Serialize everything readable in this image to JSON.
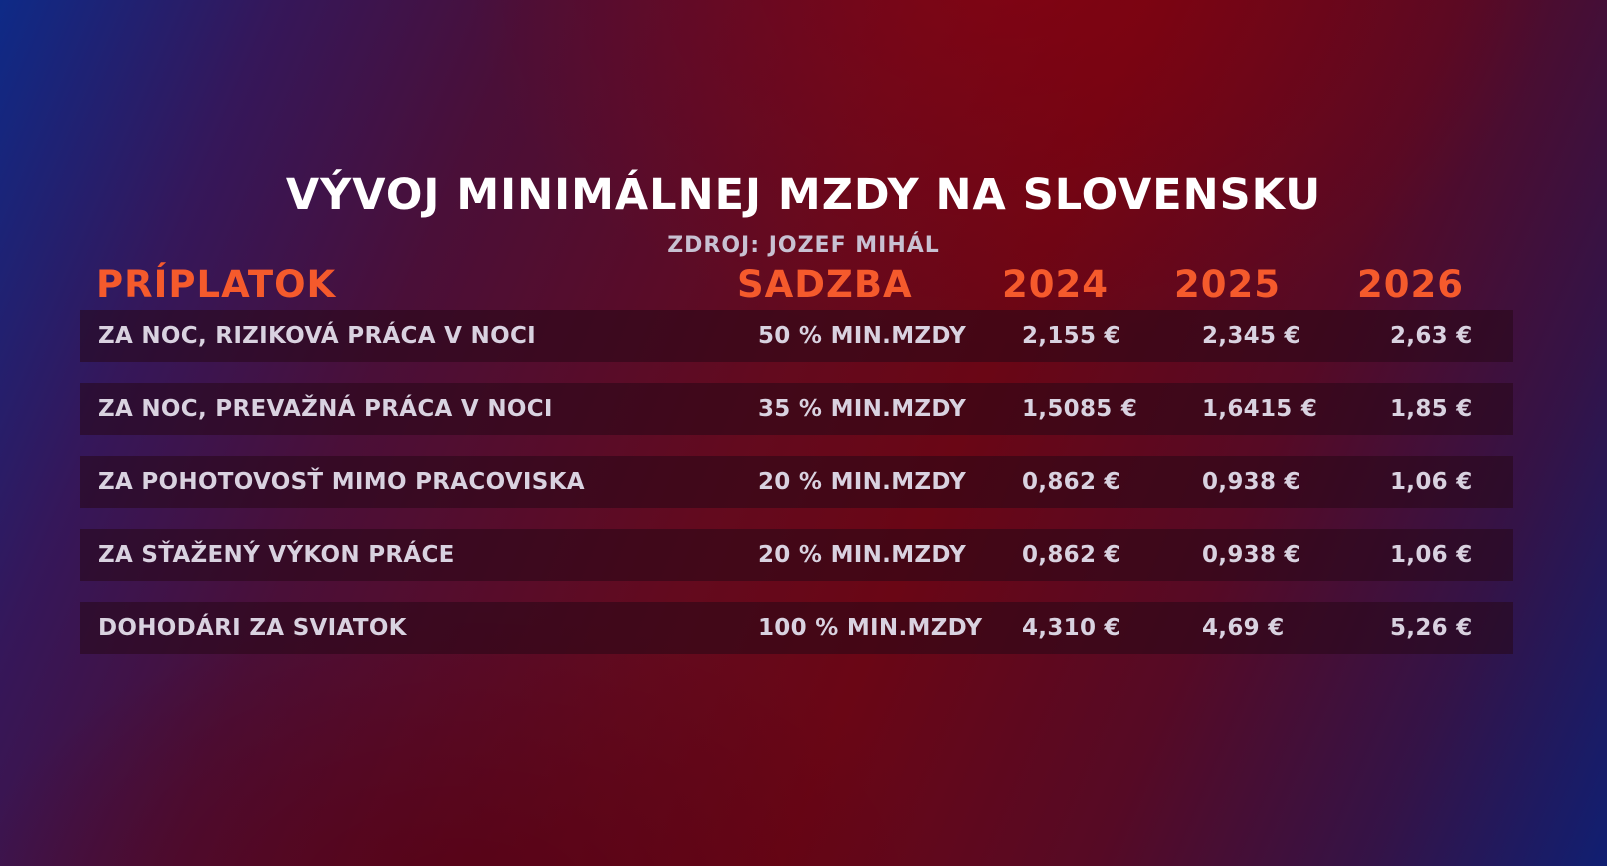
{
  "title": "VÝVOJ MINIMÁLNEJ MZDY NA SLOVENSKU",
  "source": "ZDROJ: JOZEF MIHÁL",
  "headers": {
    "priplatok": "PRÍPLATOK",
    "sadzba": "SADZBA",
    "y2024": "2024",
    "y2025": "2025",
    "y2026": "2026"
  },
  "accent_color": "#f55a2c",
  "rows": [
    {
      "name": "ZA NOC, RIZIKOVÁ PRÁCA V NOCI",
      "rate": "50 % MIN.MZDY",
      "y2024": "2,155 €",
      "y2025": "2,345 €",
      "y2026": "2,63 €"
    },
    {
      "name": "ZA NOC, PREVAŽNÁ PRÁCA V NOCI",
      "rate": "35 % MIN.MZDY",
      "y2024": "1,5085 €",
      "y2025": "1,6415 €",
      "y2026": "1,85 €"
    },
    {
      "name": "ZA POHOTOVOSŤ MIMO PRACOVISKA",
      "rate": "20 % MIN.MZDY",
      "y2024": "0,862 €",
      "y2025": "0,938 €",
      "y2026": "1,06 €"
    },
    {
      "name": "ZA SŤAŽENÝ VÝKON PRÁCE",
      "rate": "20 % MIN.MZDY",
      "y2024": "0,862 €",
      "y2025": "0,938 €",
      "y2026": "1,06 €"
    },
    {
      "name": "DOHODÁRI ZA SVIATOK",
      "rate": "100 % MIN.MZDY",
      "y2024": "4,310 €",
      "y2025": "4,69 €",
      "y2026": "5,26 €"
    }
  ]
}
